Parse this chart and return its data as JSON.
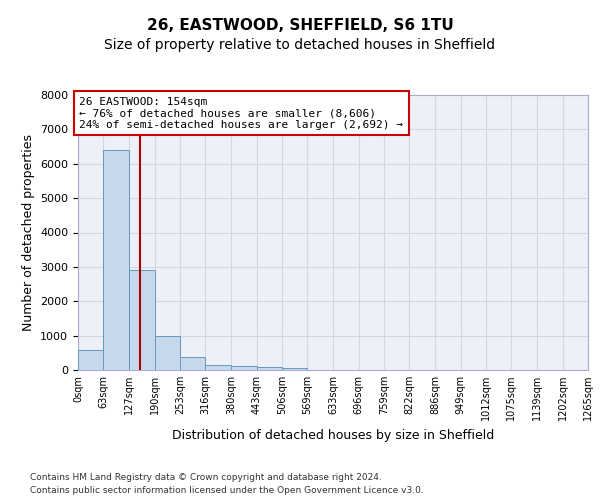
{
  "title1": "26, EASTWOOD, SHEFFIELD, S6 1TU",
  "title2": "Size of property relative to detached houses in Sheffield",
  "xlabel": "Distribution of detached houses by size in Sheffield",
  "ylabel": "Number of detached properties",
  "footer1": "Contains HM Land Registry data © Crown copyright and database right 2024.",
  "footer2": "Contains public sector information licensed under the Open Government Licence v3.0.",
  "annotation_title": "26 EASTWOOD: 154sqm",
  "annotation_line1": "← 76% of detached houses are smaller (8,606)",
  "annotation_line2": "24% of semi-detached houses are larger (2,692) →",
  "property_size": 154,
  "bin_edges": [
    0,
    63,
    127,
    190,
    253,
    316,
    380,
    443,
    506,
    569,
    633,
    696,
    759,
    822,
    886,
    949,
    1012,
    1075,
    1139,
    1202,
    1265
  ],
  "bin_labels": [
    "0sqm",
    "63sqm",
    "127sqm",
    "190sqm",
    "253sqm",
    "316sqm",
    "380sqm",
    "443sqm",
    "506sqm",
    "569sqm",
    "633sqm",
    "696sqm",
    "759sqm",
    "822sqm",
    "886sqm",
    "949sqm",
    "1012sqm",
    "1075sqm",
    "1139sqm",
    "1202sqm",
    "1265sqm"
  ],
  "bar_heights": [
    570,
    6400,
    2900,
    1000,
    380,
    150,
    120,
    75,
    50,
    0,
    0,
    0,
    0,
    0,
    0,
    0,
    0,
    0,
    0,
    0
  ],
  "bar_color": "#c8d8ec",
  "bar_edge_color": "#6699bb",
  "grid_color": "#d0d8e8",
  "vline_color": "#aa0000",
  "annotation_box_color": "#cc0000",
  "ylim": [
    0,
    8000
  ],
  "yticks": [
    0,
    1000,
    2000,
    3000,
    4000,
    5000,
    6000,
    7000,
    8000
  ],
  "background_color": "#eef0f8",
  "title1_fontsize": 11,
  "title2_fontsize": 10,
  "xlabel_fontsize": 9,
  "ylabel_fontsize": 9,
  "ann_fontsize": 8
}
